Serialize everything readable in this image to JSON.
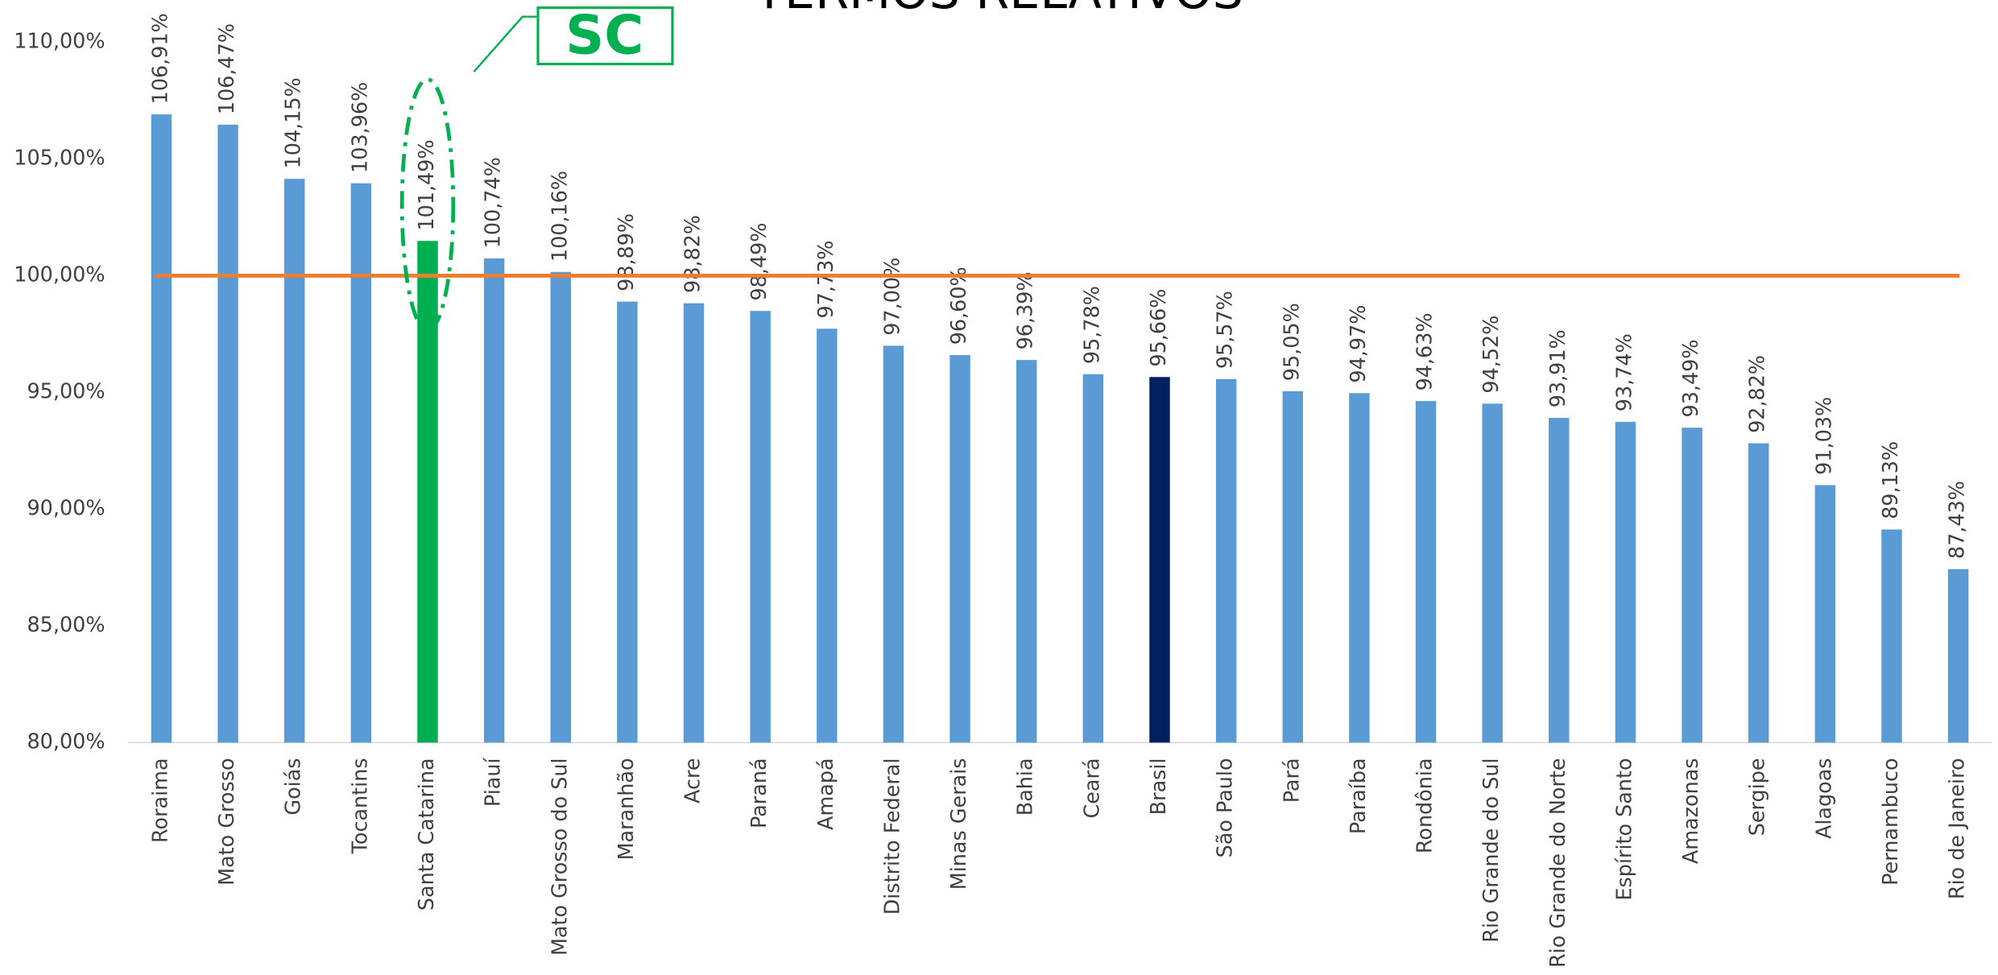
{
  "chart_data": {
    "type": "bar",
    "title": "TERMOS RELATIVOS",
    "categories": [
      "Roraima",
      "Mato Grosso",
      "Goiás",
      "Tocantins",
      "Santa Catarina",
      "Piauí",
      "Mato Grosso do Sul",
      "Maranhão",
      "Acre",
      "Paraná",
      "Amapá",
      "Distrito Federal",
      "Minas Gerais",
      "Bahia",
      "Ceará",
      "Brasil",
      "São Paulo",
      "Pará",
      "Paraíba",
      "Rondônia",
      "Rio Grande do Sul",
      "Rio Grande do Norte",
      "Espírito Santo",
      "Amazonas",
      "Sergipe",
      "Alagoas",
      "Pernambuco",
      "Rio de Janeiro"
    ],
    "values": [
      106.91,
      106.47,
      104.15,
      103.96,
      101.49,
      100.74,
      100.16,
      98.89,
      98.82,
      98.49,
      97.73,
      97.0,
      96.6,
      96.39,
      95.78,
      95.66,
      95.57,
      95.05,
      94.97,
      94.63,
      94.52,
      93.91,
      93.74,
      93.49,
      92.82,
      91.03,
      89.13,
      87.43
    ],
    "value_labels": [
      "106,91%",
      "106,47%",
      "104,15%",
      "103,96%",
      "101,49%",
      "100,74%",
      "100,16%",
      "98,89%",
      "98,82%",
      "98,49%",
      "97,73%",
      "97,00%",
      "96,60%",
      "96,39%",
      "95,78%",
      "95,66%",
      "95,57%",
      "95,05%",
      "94,97%",
      "94,63%",
      "94,52%",
      "93,91%",
      "93,74%",
      "93,49%",
      "92,82%",
      "91,03%",
      "89,13%",
      "87,43%"
    ],
    "colors": [
      "#5b9bd5",
      "#5b9bd5",
      "#5b9bd5",
      "#5b9bd5",
      "#00b050",
      "#5b9bd5",
      "#5b9bd5",
      "#5b9bd5",
      "#5b9bd5",
      "#5b9bd5",
      "#5b9bd5",
      "#5b9bd5",
      "#5b9bd5",
      "#5b9bd5",
      "#5b9bd5",
      "#002060",
      "#5b9bd5",
      "#5b9bd5",
      "#5b9bd5",
      "#5b9bd5",
      "#5b9bd5",
      "#5b9bd5",
      "#5b9bd5",
      "#5b9bd5",
      "#5b9bd5",
      "#5b9bd5",
      "#5b9bd5",
      "#5b9bd5"
    ],
    "ylim": [
      80,
      110
    ],
    "yticks": [
      {
        "value": 80,
        "label": "80,00%"
      },
      {
        "value": 85,
        "label": "85,00%"
      },
      {
        "value": 90,
        "label": "90,00%"
      },
      {
        "value": 95,
        "label": "95,00%"
      },
      {
        "value": 100,
        "label": "100,00%"
      },
      {
        "value": 105,
        "label": "105,00%"
      },
      {
        "value": 110,
        "label": "110,00%"
      }
    ],
    "reference_line": {
      "value": 100,
      "color": "#ed7d31"
    },
    "annotation": "SC"
  }
}
